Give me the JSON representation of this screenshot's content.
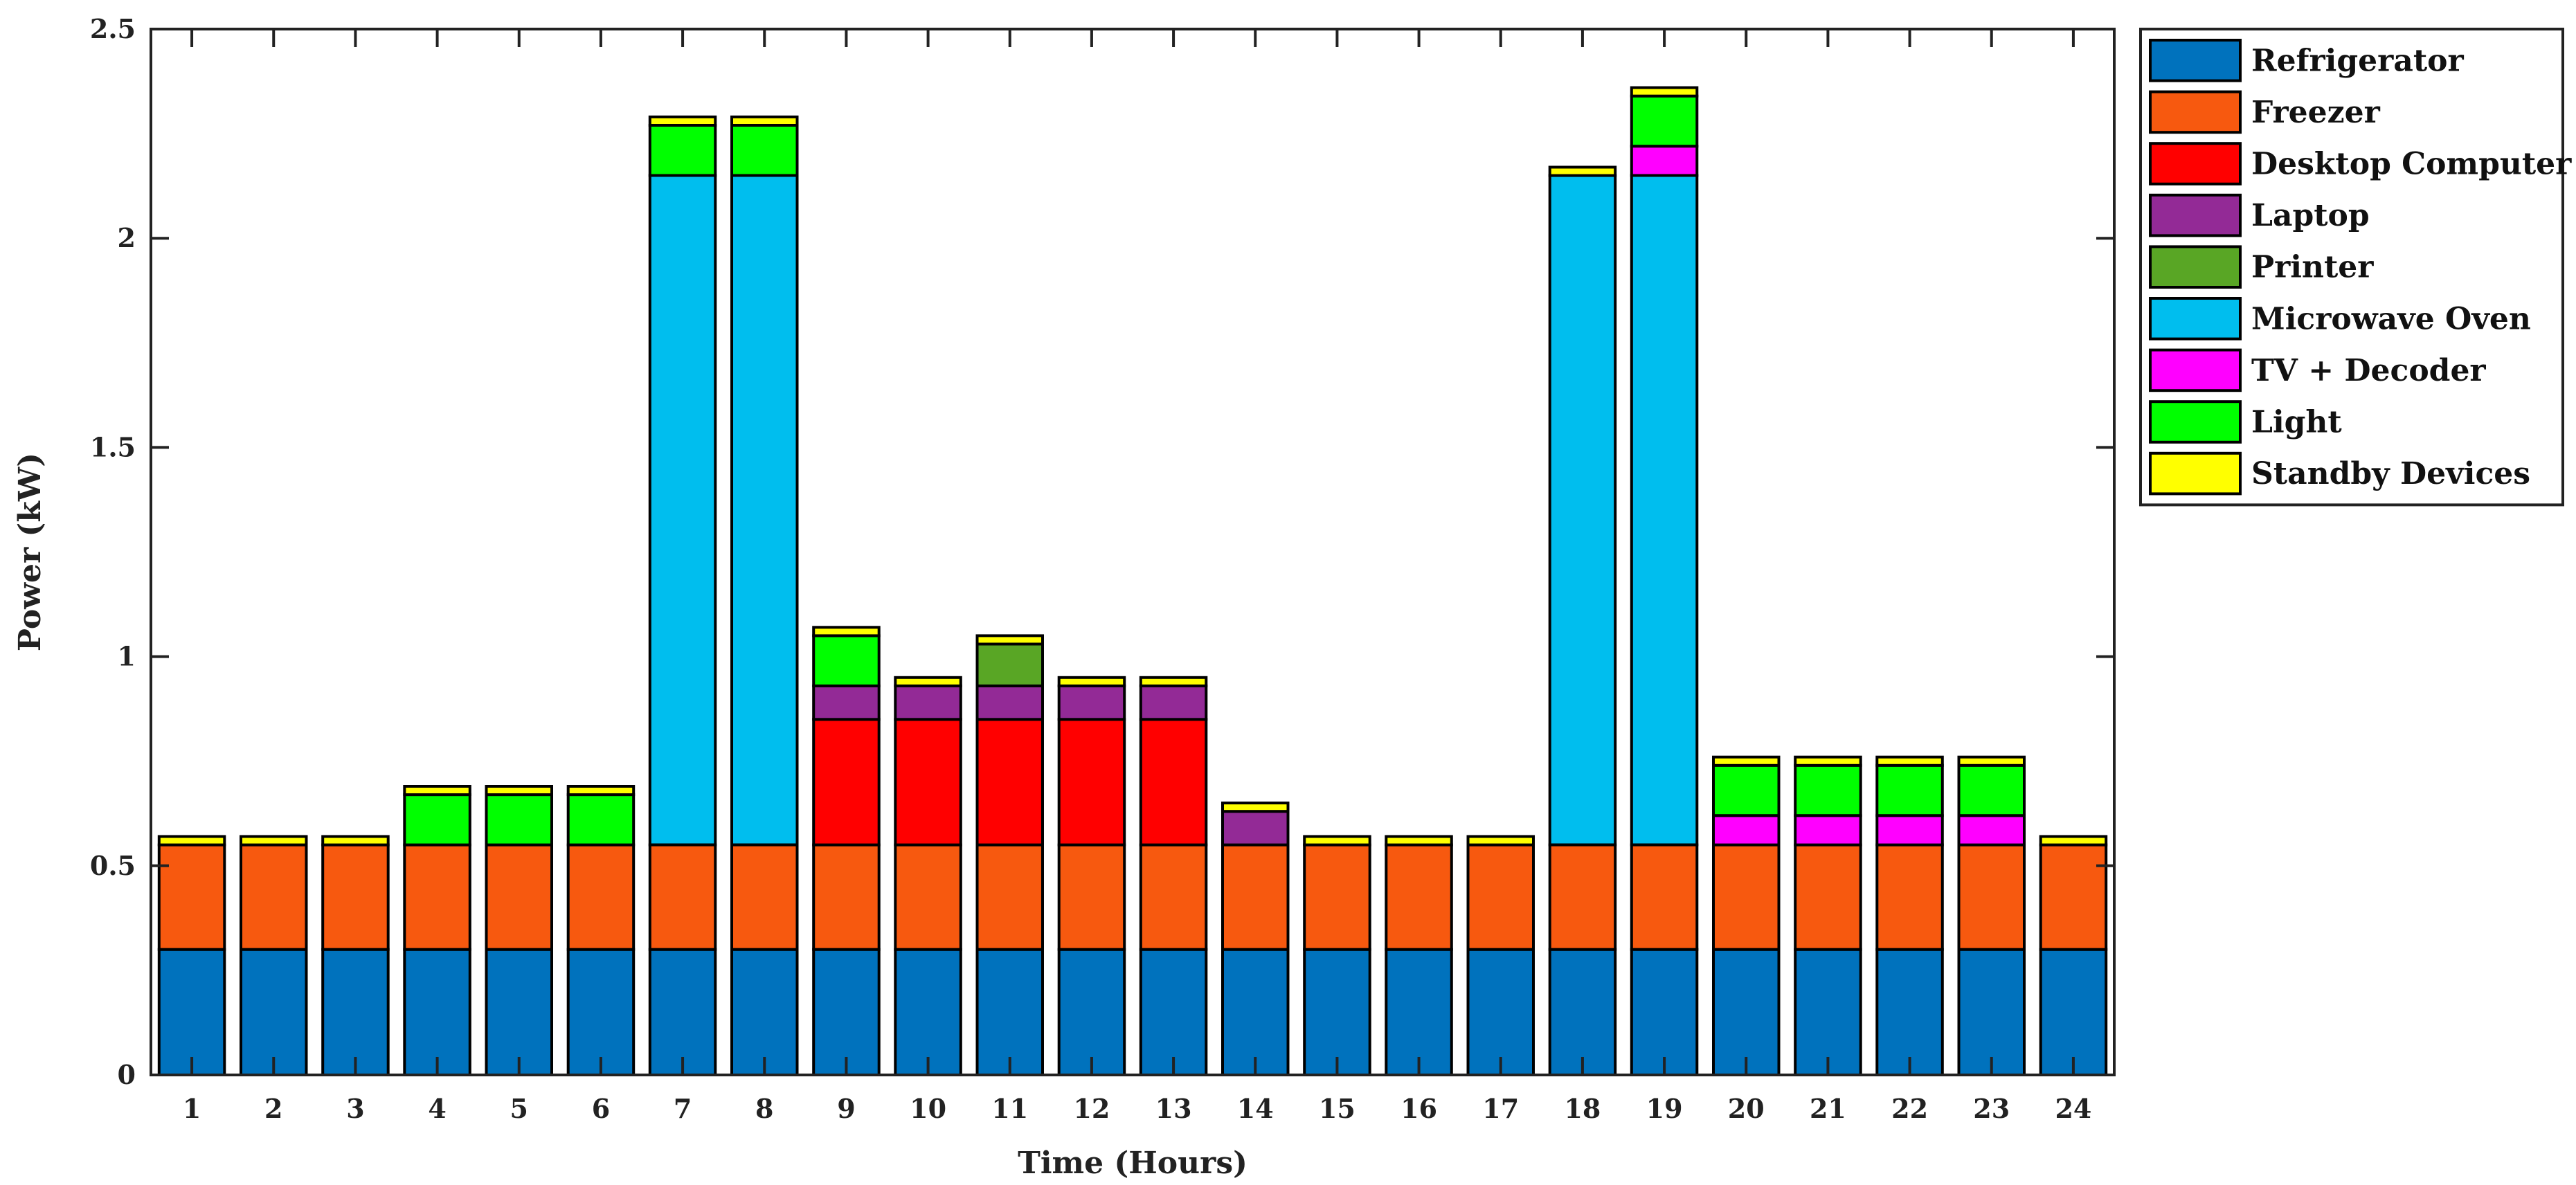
{
  "chart_data": {
    "type": "bar",
    "stacked": true,
    "title": "",
    "xlabel": "Time (Hours)",
    "ylabel": "Power (kW)",
    "ylim": [
      0,
      2.5
    ],
    "yticks": [
      "0",
      "0.5",
      "1",
      "1.5",
      "2",
      "2.5"
    ],
    "grid": false,
    "legend_position": "outside-top-right",
    "categories": [
      "1",
      "2",
      "3",
      "4",
      "5",
      "6",
      "7",
      "8",
      "9",
      "10",
      "11",
      "12",
      "13",
      "14",
      "15",
      "16",
      "17",
      "18",
      "19",
      "20",
      "21",
      "22",
      "23",
      "24"
    ],
    "series": [
      {
        "name": "Refrigerator",
        "color": "#0072BD",
        "values": [
          0.3,
          0.3,
          0.3,
          0.3,
          0.3,
          0.3,
          0.3,
          0.3,
          0.3,
          0.3,
          0.3,
          0.3,
          0.3,
          0.3,
          0.3,
          0.3,
          0.3,
          0.3,
          0.3,
          0.3,
          0.3,
          0.3,
          0.3,
          0.3
        ]
      },
      {
        "name": "Freezer",
        "color": "#F7590F",
        "values": [
          0.25,
          0.25,
          0.25,
          0.25,
          0.25,
          0.25,
          0.25,
          0.25,
          0.25,
          0.25,
          0.25,
          0.25,
          0.25,
          0.25,
          0.25,
          0.25,
          0.25,
          0.25,
          0.25,
          0.25,
          0.25,
          0.25,
          0.25,
          0.25
        ]
      },
      {
        "name": "Desktop Computer",
        "color": "#FF0000",
        "values": [
          0,
          0,
          0,
          0,
          0,
          0,
          0,
          0,
          0.3,
          0.3,
          0.3,
          0.3,
          0.3,
          0,
          0,
          0,
          0,
          0,
          0,
          0,
          0,
          0,
          0,
          0
        ]
      },
      {
        "name": "Laptop",
        "color": "#932A96",
        "values": [
          0,
          0,
          0,
          0,
          0,
          0,
          0,
          0,
          0.08,
          0.08,
          0.08,
          0.08,
          0.08,
          0.08,
          0,
          0,
          0,
          0,
          0,
          0,
          0,
          0,
          0,
          0
        ]
      },
      {
        "name": "Printer",
        "color": "#59A625",
        "values": [
          0,
          0,
          0,
          0,
          0,
          0,
          0,
          0,
          0,
          0,
          0.1,
          0,
          0,
          0,
          0,
          0,
          0,
          0,
          0,
          0,
          0,
          0,
          0,
          0
        ]
      },
      {
        "name": "Microwave Oven",
        "color": "#00BEEE",
        "values": [
          0,
          0,
          0,
          0,
          0,
          0,
          1.6,
          1.6,
          0,
          0,
          0,
          0,
          0,
          0,
          0,
          0,
          0,
          1.6,
          1.6,
          0,
          0,
          0,
          0,
          0
        ]
      },
      {
        "name": "TV + Decoder",
        "color": "#FF00FF",
        "values": [
          0,
          0,
          0,
          0,
          0,
          0,
          0,
          0,
          0,
          0,
          0,
          0,
          0,
          0,
          0,
          0,
          0,
          0,
          0.07,
          0.07,
          0.07,
          0.07,
          0.07,
          0
        ]
      },
      {
        "name": "Light",
        "color": "#00FF00",
        "values": [
          0,
          0,
          0,
          0.12,
          0.12,
          0.12,
          0.12,
          0.12,
          0.12,
          0,
          0,
          0,
          0,
          0,
          0,
          0,
          0,
          0,
          0.12,
          0.12,
          0.12,
          0.12,
          0.12,
          0
        ]
      },
      {
        "name": "Standby Devices",
        "color": "#FFFF00",
        "values": [
          0.02,
          0.02,
          0.02,
          0.02,
          0.02,
          0.02,
          0.02,
          0.02,
          0.02,
          0.02,
          0.02,
          0.02,
          0.02,
          0.02,
          0.02,
          0.02,
          0.02,
          0.02,
          0.02,
          0.02,
          0.02,
          0.02,
          0.02,
          0.02
        ]
      }
    ]
  }
}
